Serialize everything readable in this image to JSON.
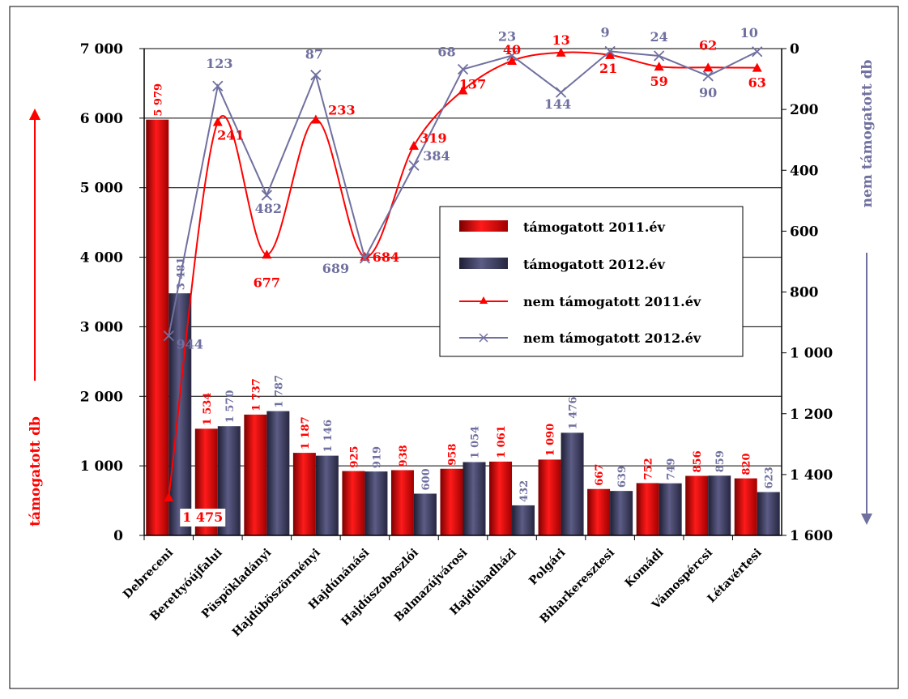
{
  "chart_data": {
    "type": "bar",
    "categories": [
      "Debreceni",
      "Berettyóújfalui",
      "Püspökladányi",
      "Hajdúböszörményi",
      "Hajdúnánási",
      "Hajdúszoboszlói",
      "Balmazújvárosi",
      "Hajdúhadházi",
      "Polgári",
      "Biharkeresztesi",
      "Komádi",
      "Vámospércsi",
      "Létavértesi"
    ],
    "y_left": {
      "label": "támogatott db",
      "range": [
        0,
        7000
      ],
      "ticks": [
        "0",
        "1 000",
        "2 000",
        "3 000",
        "4 000",
        "5 000",
        "6 000",
        "7 000"
      ]
    },
    "y_right": {
      "label": "nem támogatott db",
      "range": [
        0,
        1600
      ],
      "inverted": true,
      "ticks": [
        "0",
        "200",
        "400",
        "600",
        "800",
        "1 000",
        "1 200",
        "1 400",
        "1 600"
      ]
    },
    "series": [
      {
        "name": "támogatott 2011.év",
        "kind": "bar",
        "axis": "left",
        "color": "#e00000",
        "values": [
          5979,
          1534,
          1737,
          1187,
          925,
          938,
          958,
          1061,
          1090,
          667,
          752,
          856,
          820
        ],
        "labels": [
          "5 979",
          "1 534",
          "1 737",
          "1 187",
          "925",
          "938",
          "958",
          "1 061",
          "1 090",
          "667",
          "752",
          "856",
          "820"
        ]
      },
      {
        "name": "támogatott 2012.év",
        "kind": "bar",
        "axis": "left",
        "color": "#3a3a5e",
        "values": [
          3481,
          1570,
          1787,
          1146,
          919,
          600,
          1054,
          432,
          1476,
          639,
          749,
          859,
          623
        ],
        "labels": [
          "3 481",
          "1 570",
          "1 787",
          "1 146",
          "919",
          "600",
          "1 054",
          "432",
          "1 476",
          "639",
          "749",
          "859",
          "623"
        ]
      },
      {
        "name": "nem támogatott 2011.év",
        "kind": "line",
        "axis": "right",
        "color": "#ff0000",
        "marker": "triangle",
        "values": [
          1475,
          241,
          677,
          233,
          684,
          319,
          137,
          40,
          13,
          21,
          59,
          62,
          63
        ],
        "labels": [
          "1 475",
          "241",
          "677",
          "233",
          "684",
          "319",
          "137",
          "40",
          "13",
          "21",
          "59",
          "62",
          "63"
        ]
      },
      {
        "name": "nem támogatott 2012.év",
        "kind": "line",
        "axis": "right",
        "color": "#7070a0",
        "marker": "x",
        "values": [
          944,
          123,
          482,
          87,
          689,
          384,
          68,
          23,
          144,
          9,
          24,
          90,
          10
        ],
        "labels": [
          "944",
          "123",
          "482",
          "87",
          "689",
          "384",
          "68",
          "23",
          "144",
          "9",
          "24",
          "90",
          "10"
        ]
      }
    ],
    "legend_position": "right-middle",
    "grid": true
  }
}
